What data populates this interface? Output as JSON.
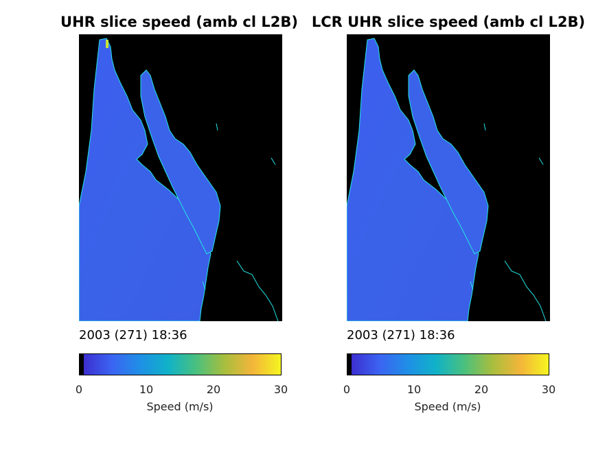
{
  "panels": [
    {
      "title": "UHR slice speed (amb cl L2B)",
      "date": "2003 (271) 18:36",
      "colorbar": {
        "ticks": [
          "0",
          "10",
          "20",
          "30"
        ],
        "label": "Speed (m/s)"
      }
    },
    {
      "title": "LCR UHR slice speed (amb cl L2B)",
      "date": "2003 (271) 18:36",
      "colorbar": {
        "ticks": [
          "0",
          "10",
          "20",
          "30"
        ],
        "label": "Speed (m/s)"
      }
    }
  ],
  "colors": {
    "land": "#000000",
    "coastline": "#22e5e5",
    "ocean_speed": "#3a62e8",
    "colormap": [
      "#140a40",
      "#3c2fd0",
      "#3b64f2",
      "#1f8fe6",
      "#10b2c8",
      "#4ac07e",
      "#a8be3e",
      "#f3b53a",
      "#f5f520"
    ]
  },
  "chart_data": [
    {
      "type": "heatmap",
      "title": "UHR slice speed (amb cl L2B)",
      "annotation": "2003 (271) 18:36",
      "colorbar_label": "Speed (m/s)",
      "colorbar_range": [
        0,
        30
      ],
      "colorbar_ticks": [
        0,
        10,
        20,
        30
      ],
      "dominant_speed_mps": 5
    },
    {
      "type": "heatmap",
      "title": "LCR UHR slice speed (amb cl L2B)",
      "annotation": "2003 (271) 18:36",
      "colorbar_label": "Speed (m/s)",
      "colorbar_range": [
        0,
        30
      ],
      "colorbar_ticks": [
        0,
        10,
        20,
        30
      ],
      "dominant_speed_mps": 5
    }
  ]
}
